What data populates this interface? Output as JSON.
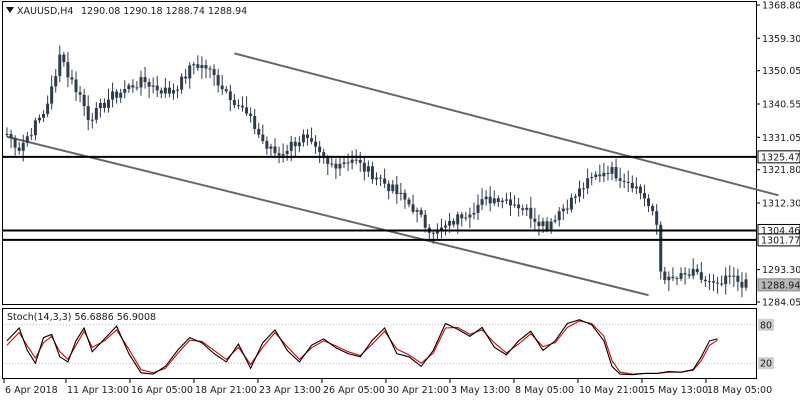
{
  "header": {
    "symbol": "XAUUSD,H4",
    "ohlc": "1290.08 1290.18 1288.74 1288.94"
  },
  "colors": {
    "background": "#ffffff",
    "candle": "#2e3b4e",
    "frame": "#000000",
    "channel": "#666666",
    "level": "#000000",
    "stoch_main": "#000000",
    "stoch_signal": "#e00000",
    "stoch_level": "#b8b8b8"
  },
  "price_axis": {
    "ticks": [
      {
        "value": 1368.8,
        "label": "1368.80"
      },
      {
        "value": 1359.3,
        "label": "1359.30"
      },
      {
        "value": 1350.05,
        "label": "1350.05"
      },
      {
        "value": 1340.55,
        "label": "1340.55"
      },
      {
        "value": 1331.05,
        "label": "1331.05"
      },
      {
        "value": 1321.8,
        "label": "1321.80"
      },
      {
        "value": 1312.3,
        "label": "1312.30"
      },
      {
        "value": 1293.3,
        "label": "1293.30"
      },
      {
        "value": 1284.05,
        "label": "1284.05"
      }
    ],
    "range": [
      1284.05,
      1368.8
    ]
  },
  "time_axis": {
    "labels": [
      "6 Apr 2018",
      "11 Apr 13:00",
      "16 Apr 05:00",
      "18 Apr 21:00",
      "23 Apr 13:00",
      "26 Apr 05:00",
      "30 Apr 21:00",
      "3 May 13:00",
      "8 May 05:00",
      "10 May 21:00",
      "15 May 13:00",
      "18 May 05:00"
    ]
  },
  "levels": [
    {
      "value": 1325.47,
      "label": "1325.47"
    },
    {
      "value": 1304.46,
      "label": "1304.46"
    },
    {
      "value": 1301.77,
      "label": "1301.77"
    }
  ],
  "current_price": {
    "value": 1288.94,
    "label": "1288.94"
  },
  "stochastic": {
    "label": "Stoch(14,3,3) 56.6886 56.9008",
    "main": 56.6886,
    "signal": 56.9008,
    "level_labels": [
      "80",
      "20"
    ],
    "levels": [
      80,
      20
    ],
    "range": [
      0,
      100
    ]
  },
  "chart_data": {
    "type": "candlestick",
    "title": "XAUUSD,H4",
    "x_start": "6 Apr 2018",
    "x_end": "18 May 05:00",
    "ylim": [
      1284.05,
      1368.8
    ],
    "close_path": [
      [
        0,
        1332
      ],
      [
        3,
        1328
      ],
      [
        6,
        1333
      ],
      [
        9,
        1338
      ],
      [
        12,
        1348
      ],
      [
        13,
        1356
      ],
      [
        15,
        1349
      ],
      [
        18,
        1343
      ],
      [
        20,
        1337
      ],
      [
        22,
        1338
      ],
      [
        25,
        1342
      ],
      [
        28,
        1344
      ],
      [
        31,
        1346
      ],
      [
        34,
        1347
      ],
      [
        37,
        1345
      ],
      [
        40,
        1344
      ],
      [
        43,
        1347
      ],
      [
        46,
        1352
      ],
      [
        49,
        1351
      ],
      [
        52,
        1347
      ],
      [
        55,
        1343
      ],
      [
        58,
        1339
      ],
      [
        61,
        1334
      ],
      [
        64,
        1328
      ],
      [
        67,
        1326
      ],
      [
        70,
        1329
      ],
      [
        73,
        1331
      ],
      [
        76,
        1327
      ],
      [
        79,
        1323
      ],
      [
        82,
        1324
      ],
      [
        85,
        1325
      ],
      [
        88,
        1322
      ],
      [
        91,
        1320
      ],
      [
        94,
        1317
      ],
      [
        97,
        1314
      ],
      [
        100,
        1311
      ],
      [
        103,
        1306
      ],
      [
        106,
        1304
      ],
      [
        109,
        1306
      ],
      [
        112,
        1309
      ],
      [
        115,
        1311
      ],
      [
        118,
        1313
      ],
      [
        121,
        1314
      ],
      [
        124,
        1313
      ],
      [
        127,
        1311
      ],
      [
        130,
        1308
      ],
      [
        133,
        1306
      ],
      [
        136,
        1310
      ],
      [
        139,
        1313
      ],
      [
        142,
        1317
      ],
      [
        145,
        1320
      ],
      [
        148,
        1322
      ],
      [
        151,
        1320
      ],
      [
        154,
        1318
      ],
      [
        157,
        1314
      ],
      [
        160,
        1306
      ],
      [
        161,
        1293
      ],
      [
        163,
        1290
      ],
      [
        166,
        1291
      ],
      [
        169,
        1292
      ],
      [
        172,
        1290
      ],
      [
        175,
        1288
      ],
      [
        178,
        1291
      ],
      [
        180,
        1290
      ],
      [
        182,
        1289
      ]
    ],
    "stoch_main_path": [
      [
        0,
        55
      ],
      [
        3,
        75
      ],
      [
        5,
        40
      ],
      [
        7,
        20
      ],
      [
        9,
        60
      ],
      [
        11,
        65
      ],
      [
        13,
        30
      ],
      [
        15,
        22
      ],
      [
        17,
        55
      ],
      [
        19,
        75
      ],
      [
        21,
        38
      ],
      [
        24,
        58
      ],
      [
        27,
        78
      ],
      [
        30,
        35
      ],
      [
        33,
        5
      ],
      [
        36,
        3
      ],
      [
        39,
        15
      ],
      [
        42,
        40
      ],
      [
        45,
        60
      ],
      [
        48,
        52
      ],
      [
        51,
        35
      ],
      [
        54,
        22
      ],
      [
        57,
        50
      ],
      [
        60,
        12
      ],
      [
        63,
        52
      ],
      [
        66,
        72
      ],
      [
        69,
        40
      ],
      [
        72,
        22
      ],
      [
        75,
        48
      ],
      [
        78,
        58
      ],
      [
        81,
        44
      ],
      [
        84,
        35
      ],
      [
        87,
        30
      ],
      [
        90,
        56
      ],
      [
        93,
        75
      ],
      [
        96,
        35
      ],
      [
        99,
        30
      ],
      [
        102,
        15
      ],
      [
        105,
        40
      ],
      [
        108,
        82
      ],
      [
        111,
        73
      ],
      [
        114,
        62
      ],
      [
        117,
        76
      ],
      [
        120,
        45
      ],
      [
        123,
        33
      ],
      [
        126,
        55
      ],
      [
        129,
        70
      ],
      [
        132,
        40
      ],
      [
        135,
        55
      ],
      [
        138,
        82
      ],
      [
        141,
        88
      ],
      [
        144,
        80
      ],
      [
        147,
        55
      ],
      [
        149,
        15
      ],
      [
        151,
        3
      ],
      [
        154,
        2
      ],
      [
        157,
        4
      ],
      [
        160,
        4
      ],
      [
        163,
        7
      ],
      [
        166,
        6
      ],
      [
        169,
        10
      ],
      [
        171,
        30
      ],
      [
        173,
        55
      ],
      [
        175,
        58
      ]
    ],
    "stoch_signal_path": [
      [
        0,
        48
      ],
      [
        3,
        68
      ],
      [
        5,
        47
      ],
      [
        7,
        28
      ],
      [
        9,
        52
      ],
      [
        11,
        62
      ],
      [
        13,
        38
      ],
      [
        15,
        26
      ],
      [
        17,
        48
      ],
      [
        19,
        70
      ],
      [
        21,
        45
      ],
      [
        24,
        55
      ],
      [
        27,
        72
      ],
      [
        30,
        42
      ],
      [
        33,
        10
      ],
      [
        36,
        5
      ],
      [
        39,
        12
      ],
      [
        42,
        35
      ],
      [
        45,
        56
      ],
      [
        48,
        54
      ],
      [
        51,
        40
      ],
      [
        54,
        26
      ],
      [
        57,
        45
      ],
      [
        60,
        18
      ],
      [
        63,
        45
      ],
      [
        66,
        68
      ],
      [
        69,
        46
      ],
      [
        72,
        26
      ],
      [
        75,
        44
      ],
      [
        78,
        55
      ],
      [
        81,
        47
      ],
      [
        84,
        38
      ],
      [
        87,
        32
      ],
      [
        90,
        50
      ],
      [
        93,
        70
      ],
      [
        96,
        42
      ],
      [
        99,
        33
      ],
      [
        102,
        20
      ],
      [
        105,
        36
      ],
      [
        108,
        75
      ],
      [
        111,
        76
      ],
      [
        114,
        65
      ],
      [
        117,
        72
      ],
      [
        120,
        52
      ],
      [
        123,
        36
      ],
      [
        126,
        50
      ],
      [
        129,
        66
      ],
      [
        132,
        46
      ],
      [
        135,
        52
      ],
      [
        138,
        76
      ],
      [
        141,
        86
      ],
      [
        144,
        82
      ],
      [
        147,
        62
      ],
      [
        149,
        24
      ],
      [
        151,
        6
      ],
      [
        154,
        3
      ],
      [
        157,
        4
      ],
      [
        160,
        4
      ],
      [
        163,
        6
      ],
      [
        166,
        6
      ],
      [
        169,
        9
      ],
      [
        171,
        24
      ],
      [
        173,
        48
      ],
      [
        175,
        56
      ]
    ]
  }
}
